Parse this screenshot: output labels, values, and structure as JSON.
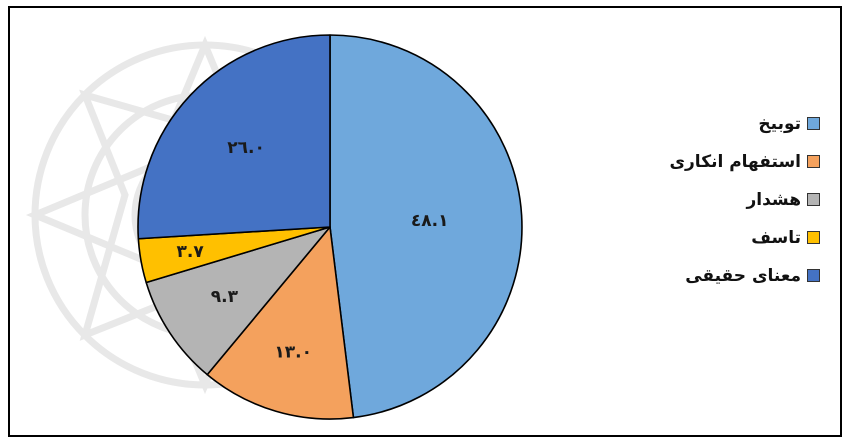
{
  "chart_data": {
    "type": "pie",
    "title": "",
    "categories": [
      "توبیخ",
      "استفهام انکاری",
      "هشدار",
      "تاسف",
      "معنای حقیقی"
    ],
    "values": [
      48.1,
      13.0,
      9.3,
      3.7,
      26.0
    ],
    "data_labels": [
      "٤٨.١",
      "١٣.٠",
      "٩.٣",
      "٣.٧",
      "٢٦.٠"
    ],
    "colors": [
      "#6fa8dc",
      "#f4a15d",
      "#b4b4b4",
      "#ffc000",
      "#4472c4"
    ],
    "start_angle": "12 o'clock",
    "direction": "clockwise",
    "legend_position": "right"
  },
  "legend": {
    "items": [
      {
        "label": "توبیخ",
        "color": "#6fa8dc"
      },
      {
        "label": "استفهام انکاری",
        "color": "#f4a15d"
      },
      {
        "label": "هشدار",
        "color": "#b4b4b4"
      },
      {
        "label": "تاسف",
        "color": "#ffc000"
      },
      {
        "label": "معنای حقیقی",
        "color": "#4472c4"
      }
    ]
  }
}
